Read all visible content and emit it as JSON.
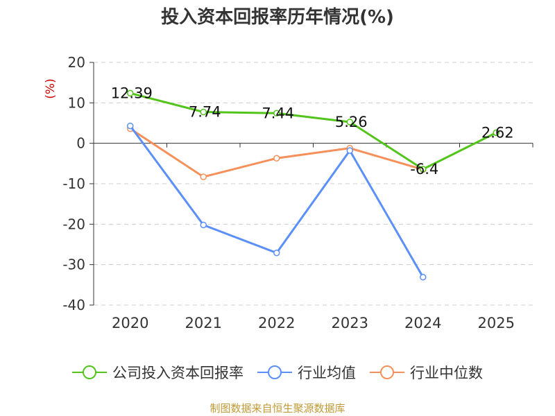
{
  "chart_data": {
    "type": "line",
    "title": "投入资本回报率历年情况(%)",
    "ylabel": "(%)",
    "xlabel": "",
    "categories": [
      "2020",
      "2021",
      "2022",
      "2023",
      "2024",
      "2025"
    ],
    "ylim": [
      -40,
      20
    ],
    "yticks": [
      20,
      10,
      0,
      -10,
      -20,
      -30,
      -40
    ],
    "grid": true,
    "legend": "bottom-center",
    "series": [
      {
        "name": "公司投入资本回报率",
        "color": "#52c41a",
        "values": [
          12.39,
          7.74,
          7.44,
          5.26,
          -6.4,
          2.62
        ],
        "labels": [
          "12.39",
          "7.74",
          "7.44",
          "5.26",
          "-6.4",
          "2.62"
        ]
      },
      {
        "name": "行业均值",
        "color": "#5b8ff9",
        "values": [
          4.3,
          -20.2,
          -27.1,
          -1.8,
          -33.1,
          null
        ]
      },
      {
        "name": "行业中位数",
        "color": "#f6905a",
        "values": [
          3.6,
          -8.3,
          -3.7,
          -1.2,
          -6.5,
          null
        ]
      }
    ]
  },
  "source": "制图数据来自恒生聚源数据库"
}
